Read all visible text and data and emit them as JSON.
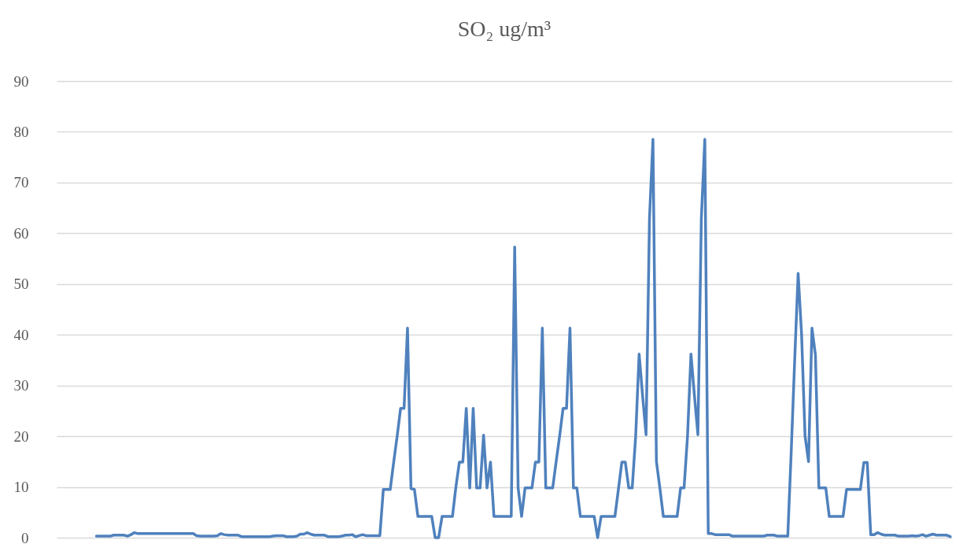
{
  "chart_data": {
    "type": "line",
    "title": "SO₂ ug/m³",
    "categories": [
      null,
      null,
      null,
      null,
      null,
      null,
      null,
      null,
      null,
      null,
      null,
      null,
      null,
      null,
      null,
      null,
      null,
      null,
      null,
      null,
      null,
      null,
      null,
      null,
      null,
      null,
      null,
      null,
      null,
      null,
      null,
      null,
      null,
      null,
      null,
      null,
      null,
      null,
      null,
      null,
      null,
      null,
      null,
      null,
      null,
      null,
      null,
      null,
      null,
      null,
      null,
      null,
      null,
      null,
      null,
      null,
      null,
      null,
      null,
      null,
      null,
      null,
      null,
      null,
      null,
      null,
      null,
      null,
      null,
      null,
      null,
      null,
      null,
      null,
      null,
      null,
      null,
      null,
      null,
      null,
      null,
      null,
      null,
      null,
      null,
      null,
      null,
      null,
      null,
      null,
      null,
      null,
      null,
      null,
      null,
      null,
      null,
      null,
      null,
      null,
      null,
      null,
      null,
      null,
      null,
      null,
      null,
      null,
      null,
      null,
      null,
      null,
      null,
      null,
      null,
      null,
      null,
      null,
      null,
      null,
      null,
      null,
      null,
      null,
      null,
      null,
      null,
      null,
      null,
      null,
      null,
      null,
      null,
      null,
      null,
      null,
      null,
      null,
      null,
      null,
      null,
      null,
      null,
      null,
      null,
      null,
      null,
      null,
      null,
      null,
      null,
      null,
      null,
      null,
      null,
      null,
      null,
      null,
      null,
      null,
      null,
      null,
      null,
      null,
      null,
      null,
      null,
      null,
      null,
      null,
      null,
      null,
      null,
      null,
      null,
      null,
      null,
      null,
      null,
      null,
      null,
      null,
      null,
      null,
      null,
      null,
      null,
      null,
      null,
      null,
      null,
      null,
      null,
      null,
      null,
      null,
      null,
      null,
      null,
      null,
      null,
      null,
      null,
      null,
      null,
      null,
      null,
      null,
      null,
      null,
      null,
      null,
      null,
      null,
      null,
      null,
      null,
      null,
      null,
      null,
      null,
      null,
      null,
      null,
      null,
      null,
      null,
      null,
      null,
      null,
      null,
      null,
      null,
      null,
      null,
      null,
      null,
      null,
      null,
      null,
      null,
      null,
      null,
      null,
      null,
      null,
      null,
      null,
      null,
      null,
      null,
      null,
      null,
      null,
      null,
      null,
      null,
      null,
      null
    ],
    "series": [
      {
        "color": "#4f81bd",
        "values": [
          null,
          null,
          null,
          null,
          null,
          null,
          null,
          null,
          null,
          null,
          null,
          0.3,
          0.3,
          0.3,
          0.3,
          0.3,
          0.5,
          0.5,
          0.5,
          0.5,
          0.3,
          0.6,
          1.0,
          0.8,
          0.8,
          0.8,
          0.8,
          0.8,
          0.8,
          0.8,
          0.8,
          0.8,
          0.8,
          0.8,
          0.8,
          0.8,
          0.8,
          0.8,
          0.8,
          0.8,
          0.4,
          0.3,
          0.3,
          0.3,
          0.3,
          0.3,
          0.4,
          0.8,
          0.6,
          0.5,
          0.5,
          0.5,
          0.5,
          0.2,
          0.2,
          0.2,
          0.2,
          0.2,
          0.2,
          0.2,
          0.2,
          0.2,
          0.3,
          0.4,
          0.4,
          0.4,
          0.2,
          0.2,
          0.2,
          0.3,
          0.7,
          0.7,
          1.0,
          0.7,
          0.5,
          0.5,
          0.5,
          0.5,
          0.2,
          0.2,
          0.2,
          0.2,
          0.3,
          0.5,
          0.5,
          0.6,
          0.2,
          0.4,
          0.6,
          0.4,
          0.4,
          0.4,
          0.4,
          0.4,
          9.5,
          9.5,
          9.5,
          14.9,
          20,
          25.5,
          25.5,
          41.3,
          9.7,
          9.5,
          4.2,
          4.2,
          4.2,
          4.2,
          4.2,
          0,
          0,
          4.2,
          4.2,
          4.2,
          4.2,
          10,
          14.9,
          14.9,
          25.5,
          9.8,
          25.5,
          9.8,
          9.8,
          20.2,
          9.8,
          14.9,
          4.2,
          4.2,
          4.2,
          4.2,
          4.2,
          4.2,
          57.3,
          9.8,
          4.2,
          9.8,
          9.8,
          9.8,
          14.9,
          14.9,
          41.3,
          9.8,
          9.8,
          9.8,
          15,
          20,
          25.5,
          25.5,
          41.3,
          9.8,
          9.8,
          4.2,
          4.2,
          4.2,
          4.2,
          4.2,
          0,
          4.2,
          4.2,
          4.2,
          4.2,
          4.2,
          9.5,
          14.9,
          14.9,
          9.8,
          9.8,
          20,
          36.2,
          28,
          20.3,
          63,
          78.5,
          15,
          9.8,
          4.2,
          4.2,
          4.2,
          4.2,
          4.2,
          9.8,
          9.8,
          20,
          36.2,
          28,
          20.3,
          63,
          78.5,
          0.8,
          0.8,
          0.6,
          0.6,
          0.6,
          0.6,
          0.6,
          0.3,
          0.3,
          0.3,
          0.3,
          0.3,
          0.3,
          0.3,
          0.3,
          0.3,
          0.3,
          0.5,
          0.5,
          0.5,
          0.3,
          0.3,
          0.3,
          0.3,
          17,
          35,
          52.1,
          40,
          20,
          15,
          41.3,
          36,
          9.8,
          9.8,
          9.8,
          4.2,
          4.2,
          4.2,
          4.2,
          4.2,
          9.5,
          9.5,
          9.5,
          9.5,
          9.5,
          14.8,
          14.8,
          0.6,
          0.6,
          1.0,
          0.7,
          0.5,
          0.5,
          0.5,
          0.5,
          0.3,
          0.3,
          0.3,
          0.3,
          0.4,
          0.3,
          0.4,
          0.6,
          0.3,
          0.5,
          0.7,
          0.5,
          0.5,
          0.5,
          0.5,
          0.2
        ]
      }
    ],
    "ylim": [
      0,
      90
    ],
    "yticks": [
      0,
      10,
      20,
      30,
      40,
      50,
      60,
      70,
      80,
      90
    ],
    "grid": "y",
    "tick_labels": "y",
    "marker": "none",
    "line_style": "solid"
  }
}
